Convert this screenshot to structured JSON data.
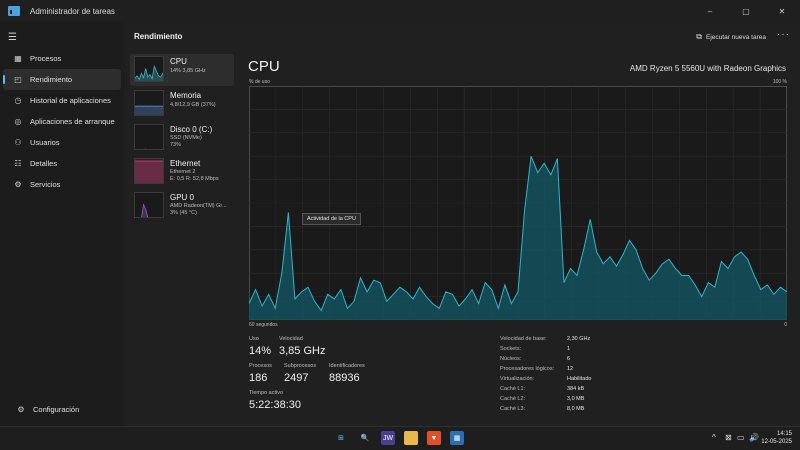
{
  "window": {
    "title": "Administrador de tareas",
    "controls": [
      "–",
      "▢",
      "✕"
    ]
  },
  "sidebar": {
    "items": [
      {
        "label": "Procesos",
        "icon": "grid-icon"
      },
      {
        "label": "Rendimiento",
        "icon": "performance-icon"
      },
      {
        "label": "Historial de aplicaciones",
        "icon": "history-icon"
      },
      {
        "label": "Aplicaciones de arranque",
        "icon": "startup-icon"
      },
      {
        "label": "Usuarios",
        "icon": "users-icon"
      },
      {
        "label": "Detalles",
        "icon": "details-icon"
      },
      {
        "label": "Servicios",
        "icon": "services-icon"
      }
    ],
    "settings_label": "Configuración"
  },
  "header": {
    "title": "Rendimiento",
    "run_task_label": "Ejecutar nueva tarea",
    "more": "···"
  },
  "perf_list": [
    {
      "name": "CPU",
      "sub1": "14% 3,85 GHz",
      "sub2": "",
      "color": "#3fb6c8"
    },
    {
      "name": "Memoria",
      "sub1": "4,8/12,9 GB (37%)",
      "sub2": "",
      "color": "#5b8fd6"
    },
    {
      "name": "Disco 0 (C:)",
      "sub1": "SSD (NVMe)",
      "sub2": "73%",
      "color": "#7fbf3f"
    },
    {
      "name": "Ethernet",
      "sub1": "Ethernet 2",
      "sub2": "E: 0,5 R: 52,8 Mbps",
      "color": "#c0507a"
    },
    {
      "name": "GPU 0",
      "sub1": "AMD Radeon(TM) Gr...",
      "sub2": "3% (45 °C)",
      "color": "#9b59c6"
    }
  ],
  "cpu": {
    "title": "CPU",
    "model": "AMD Ryzen 5 5560U with Radeon Graphics",
    "usage_axis_label": "% de uso",
    "max_label": "100 %",
    "time_label": "60 segundos",
    "min_label": "0",
    "tooltip": "Actividad de la CPU"
  },
  "stats": {
    "uso_label": "Uso",
    "uso": "14%",
    "velocidad_label": "Velocidad",
    "velocidad": "3,85 GHz",
    "procesos_label": "Procesos",
    "procesos": "186",
    "subprocesos_label": "Subprocesos",
    "subprocesos": "2497",
    "identificadores_label": "Identificadores",
    "identificadores": "88936",
    "tiempo_label": "Tiempo activo",
    "tiempo": "5:22:38:30"
  },
  "specs": [
    {
      "k": "Velocidad de base:",
      "v": "2,30 GHz"
    },
    {
      "k": "Sockets:",
      "v": "1"
    },
    {
      "k": "Núcleos:",
      "v": "6"
    },
    {
      "k": "Procesadores lógicos:",
      "v": "12"
    },
    {
      "k": "Virtualización:",
      "v": "Habilitado"
    },
    {
      "k": "Caché L1:",
      "v": "384 kB"
    },
    {
      "k": "Caché L2:",
      "v": "3,0 MB"
    },
    {
      "k": "Caché L3:",
      "v": "8,0 MB"
    }
  ],
  "chart_data": {
    "type": "area",
    "ylim": [
      0,
      100
    ],
    "values": [
      7,
      13,
      6,
      11,
      5,
      20,
      46,
      9,
      12,
      14,
      8,
      4,
      11,
      9,
      13,
      5,
      8,
      18,
      12,
      17,
      16,
      8,
      11,
      14,
      12,
      9,
      14,
      10,
      7,
      5,
      12,
      11,
      6,
      9,
      13,
      7,
      16,
      13,
      5,
      15,
      7,
      12,
      47,
      70,
      63,
      67,
      62,
      69,
      16,
      22,
      19,
      30,
      43,
      29,
      24,
      27,
      23,
      28,
      34,
      30,
      22,
      17,
      20,
      24,
      26,
      22,
      19,
      19,
      15,
      10,
      16,
      14,
      25,
      22,
      27,
      29,
      26,
      19,
      13,
      15,
      11,
      14,
      12
    ]
  },
  "taskbar": {
    "icons": [
      {
        "name": "windows-start-icon",
        "glyph": "⊞",
        "bg": "transparent",
        "color": "#4cc2ff"
      },
      {
        "name": "search-icon",
        "glyph": "🔍",
        "bg": "transparent",
        "color": "#e0e0e0"
      },
      {
        "name": "jw-app-icon",
        "glyph": "JW",
        "bg": "#4a3f8c",
        "color": "#ffffff"
      },
      {
        "name": "file-explorer-icon",
        "glyph": "▬",
        "bg": "#e8b84a",
        "color": "#e8b84a"
      },
      {
        "name": "brave-browser-icon",
        "glyph": "▼",
        "bg": "#e2502a",
        "color": "#ffffff"
      },
      {
        "name": "task-manager-icon",
        "glyph": "▦",
        "bg": "#2b6fb0",
        "color": "#ffffff"
      }
    ],
    "tray": [
      "^",
      "⊠",
      "▭",
      "🔊"
    ],
    "time": "14:15",
    "date": "12-05-2025"
  }
}
